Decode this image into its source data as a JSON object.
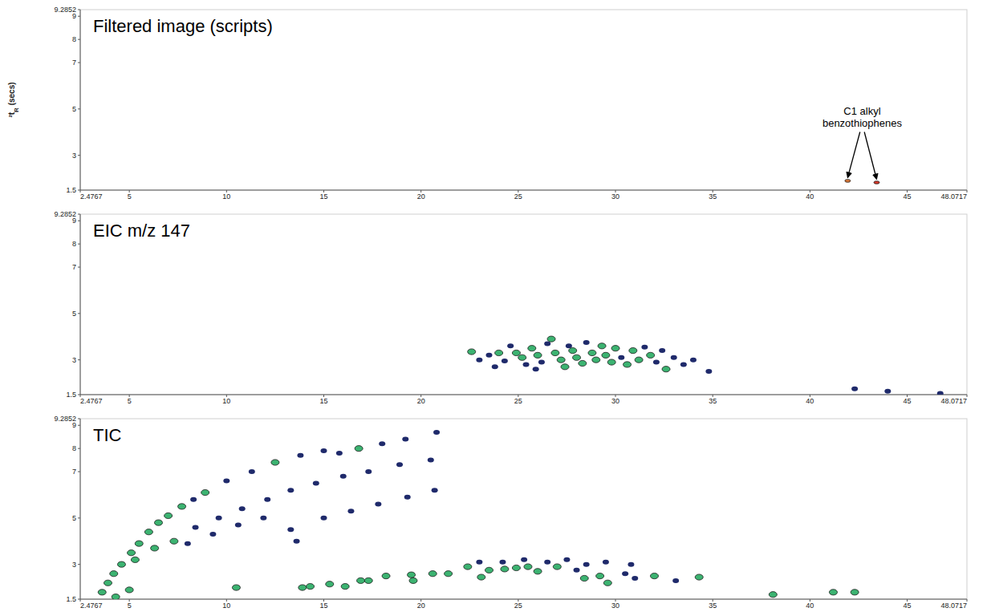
{
  "chart_data": [
    {
      "type": "scatter",
      "title": "Filtered image (scripts)",
      "y_label": "²tR (secs)",
      "annotation": [
        "C1 alkyl",
        "benzothiophenes"
      ],
      "x": [
        41.94,
        43.43
      ],
      "values": [
        1.9,
        1.83
      ],
      "colors": [
        "#e07b39",
        "#d9382a"
      ],
      "xlim": [
        2.4767,
        48.0717
      ],
      "ylim": [
        1.5,
        9.2852
      ],
      "xticks": [
        2.4767,
        5,
        10,
        15,
        20,
        25,
        30,
        35,
        40,
        45,
        48.0717
      ],
      "yticks": [
        1.5,
        3,
        5,
        7,
        8,
        9,
        9.2852
      ]
    },
    {
      "type": "scatter",
      "title": "EIC m/z 147",
      "x": [
        22.6,
        23.0,
        23.5,
        24.0,
        24.3,
        24.6,
        24.9,
        25.2,
        25.4,
        25.7,
        26.0,
        26.2,
        26.5,
        26.7,
        26.9,
        27.2,
        27.4,
        27.6,
        27.8,
        28.0,
        28.3,
        28.5,
        28.8,
        29.0,
        29.3,
        29.5,
        29.8,
        30.0,
        30.3,
        30.6,
        30.9,
        31.2,
        31.5,
        31.8,
        32.1,
        32.4,
        32.6,
        33.0,
        33.5,
        34.0,
        34.8,
        23.8,
        25.9,
        42.3,
        44.0,
        46.7
      ],
      "values": [
        3.35,
        3.0,
        3.2,
        3.3,
        2.95,
        3.6,
        3.3,
        3.1,
        2.8,
        3.5,
        3.2,
        2.9,
        3.7,
        3.9,
        3.3,
        3.0,
        2.7,
        3.6,
        3.4,
        3.1,
        2.85,
        3.75,
        3.3,
        3.0,
        3.6,
        3.2,
        2.9,
        3.5,
        3.1,
        2.8,
        3.4,
        3.0,
        3.55,
        3.2,
        2.9,
        3.4,
        2.6,
        3.1,
        2.8,
        3.0,
        2.5,
        2.7,
        2.6,
        1.75,
        1.65,
        1.55
      ],
      "colors": [
        "#3cb371",
        "#1f2a6b",
        "#1f2a6b",
        "#3cb371",
        "#1f2a6b",
        "#1f2a6b",
        "#3cb371",
        "#3cb371",
        "#1f2a6b",
        "#3cb371",
        "#3cb371",
        "#1f2a6b",
        "#1f2a6b",
        "#3cb371",
        "#3cb371",
        "#3cb371",
        "#3cb371",
        "#1f2a6b",
        "#3cb371",
        "#3cb371",
        "#3cb371",
        "#1f2a6b",
        "#3cb371",
        "#3cb371",
        "#3cb371",
        "#3cb371",
        "#3cb371",
        "#3cb371",
        "#1f2a6b",
        "#3cb371",
        "#3cb371",
        "#3cb371",
        "#1f2a6b",
        "#3cb371",
        "#1f2a6b",
        "#1f2a6b",
        "#3cb371",
        "#1f2a6b",
        "#1f2a6b",
        "#1f2a6b",
        "#1f2a6b",
        "#1f2a6b",
        "#1f2a6b",
        "#1f2a6b",
        "#1f2a6b",
        "#1f2a6b"
      ],
      "xlim": [
        2.4767,
        48.0717
      ],
      "ylim": [
        1.5,
        9.2852
      ],
      "xticks": [
        2.4767,
        5,
        10,
        15,
        20,
        25,
        30,
        35,
        40,
        45,
        48.0717
      ],
      "yticks": [
        1.5,
        3,
        5,
        7,
        8,
        9,
        9.2852
      ]
    },
    {
      "type": "scatter",
      "title": "TIC",
      "x": [
        3.6,
        3.9,
        4.2,
        4.6,
        5.1,
        5.5,
        6.0,
        6.5,
        7.0,
        7.7,
        8.3,
        8.9,
        10.0,
        11.3,
        12.5,
        13.8,
        15.0,
        15.8,
        16.8,
        18.0,
        19.2,
        20.8,
        5.3,
        6.3,
        7.3,
        8.4,
        9.6,
        10.8,
        12.1,
        13.3,
        14.6,
        16.0,
        17.3,
        18.9,
        20.5,
        8.0,
        9.3,
        10.6,
        11.9,
        13.3,
        15.0,
        16.4,
        17.8,
        19.3,
        20.7,
        13.6,
        4.3,
        5.0,
        10.5,
        13.9,
        14.3,
        15.3,
        16.1,
        16.9,
        17.3,
        18.2,
        19.5,
        19.6,
        20.6,
        21.4,
        22.4,
        23.1,
        23.5,
        24.3,
        24.9,
        25.5,
        26.0,
        27.0,
        28.0,
        28.4,
        29.2,
        29.6,
        30.5,
        31.0,
        32.0,
        33.1,
        34.3,
        38.1,
        41.2,
        42.3,
        26.5,
        27.5,
        28.5,
        29.5,
        25.3,
        30.8,
        24.2,
        23.0
      ],
      "values": [
        1.8,
        2.2,
        2.6,
        3.0,
        3.5,
        3.9,
        4.4,
        4.8,
        5.1,
        5.5,
        5.8,
        6.1,
        6.6,
        7.0,
        7.4,
        7.7,
        7.9,
        7.8,
        8.0,
        8.2,
        8.4,
        8.7,
        3.2,
        3.7,
        4.0,
        4.6,
        5.0,
        5.4,
        5.8,
        6.2,
        6.5,
        6.8,
        7.0,
        7.3,
        7.5,
        3.9,
        4.3,
        4.7,
        5.0,
        4.5,
        5.0,
        5.3,
        5.6,
        5.9,
        6.2,
        4.0,
        1.6,
        1.9,
        2.0,
        2.0,
        2.05,
        2.15,
        2.05,
        2.3,
        2.3,
        2.5,
        2.55,
        2.3,
        2.6,
        2.6,
        2.9,
        2.45,
        2.75,
        2.8,
        2.85,
        2.9,
        2.7,
        2.9,
        2.75,
        2.4,
        2.5,
        2.2,
        2.6,
        2.4,
        2.5,
        2.3,
        2.45,
        1.7,
        1.8,
        1.8,
        3.1,
        3.2,
        3.0,
        3.1,
        3.2,
        3.0,
        3.1,
        3.1
      ],
      "colors": [
        "#3cb371",
        "#3cb371",
        "#3cb371",
        "#3cb371",
        "#3cb371",
        "#3cb371",
        "#3cb371",
        "#3cb371",
        "#3cb371",
        "#3cb371",
        "#1f2a6b",
        "#3cb371",
        "#1f2a6b",
        "#1f2a6b",
        "#3cb371",
        "#1f2a6b",
        "#1f2a6b",
        "#1f2a6b",
        "#3cb371",
        "#1f2a6b",
        "#1f2a6b",
        "#1f2a6b",
        "#3cb371",
        "#3cb371",
        "#3cb371",
        "#1f2a6b",
        "#1f2a6b",
        "#1f2a6b",
        "#1f2a6b",
        "#1f2a6b",
        "#1f2a6b",
        "#1f2a6b",
        "#1f2a6b",
        "#1f2a6b",
        "#1f2a6b",
        "#1f2a6b",
        "#1f2a6b",
        "#1f2a6b",
        "#1f2a6b",
        "#1f2a6b",
        "#1f2a6b",
        "#1f2a6b",
        "#1f2a6b",
        "#1f2a6b",
        "#1f2a6b",
        "#1f2a6b",
        "#3cb371",
        "#3cb371",
        "#3cb371",
        "#3cb371",
        "#3cb371",
        "#3cb371",
        "#3cb371",
        "#3cb371",
        "#3cb371",
        "#3cb371",
        "#3cb371",
        "#3cb371",
        "#3cb371",
        "#3cb371",
        "#3cb371",
        "#3cb371",
        "#3cb371",
        "#3cb371",
        "#3cb371",
        "#3cb371",
        "#3cb371",
        "#3cb371",
        "#1f2a6b",
        "#3cb371",
        "#3cb371",
        "#3cb371",
        "#1f2a6b",
        "#1f2a6b",
        "#3cb371",
        "#1f2a6b",
        "#3cb371",
        "#3cb371",
        "#3cb371",
        "#3cb371",
        "#1f2a6b",
        "#1f2a6b",
        "#1f2a6b",
        "#1f2a6b",
        "#1f2a6b",
        "#1f2a6b",
        "#1f2a6b",
        "#1f2a6b"
      ],
      "xlim": [
        2.4767,
        48.0717
      ],
      "ylim": [
        1.5,
        9.2852
      ],
      "xticks": [
        2.4767,
        5,
        10,
        15,
        20,
        25,
        30,
        35,
        40,
        45,
        48.0717
      ],
      "yticks": [
        1.5,
        3,
        5,
        7,
        8,
        9,
        9.2852
      ]
    }
  ]
}
